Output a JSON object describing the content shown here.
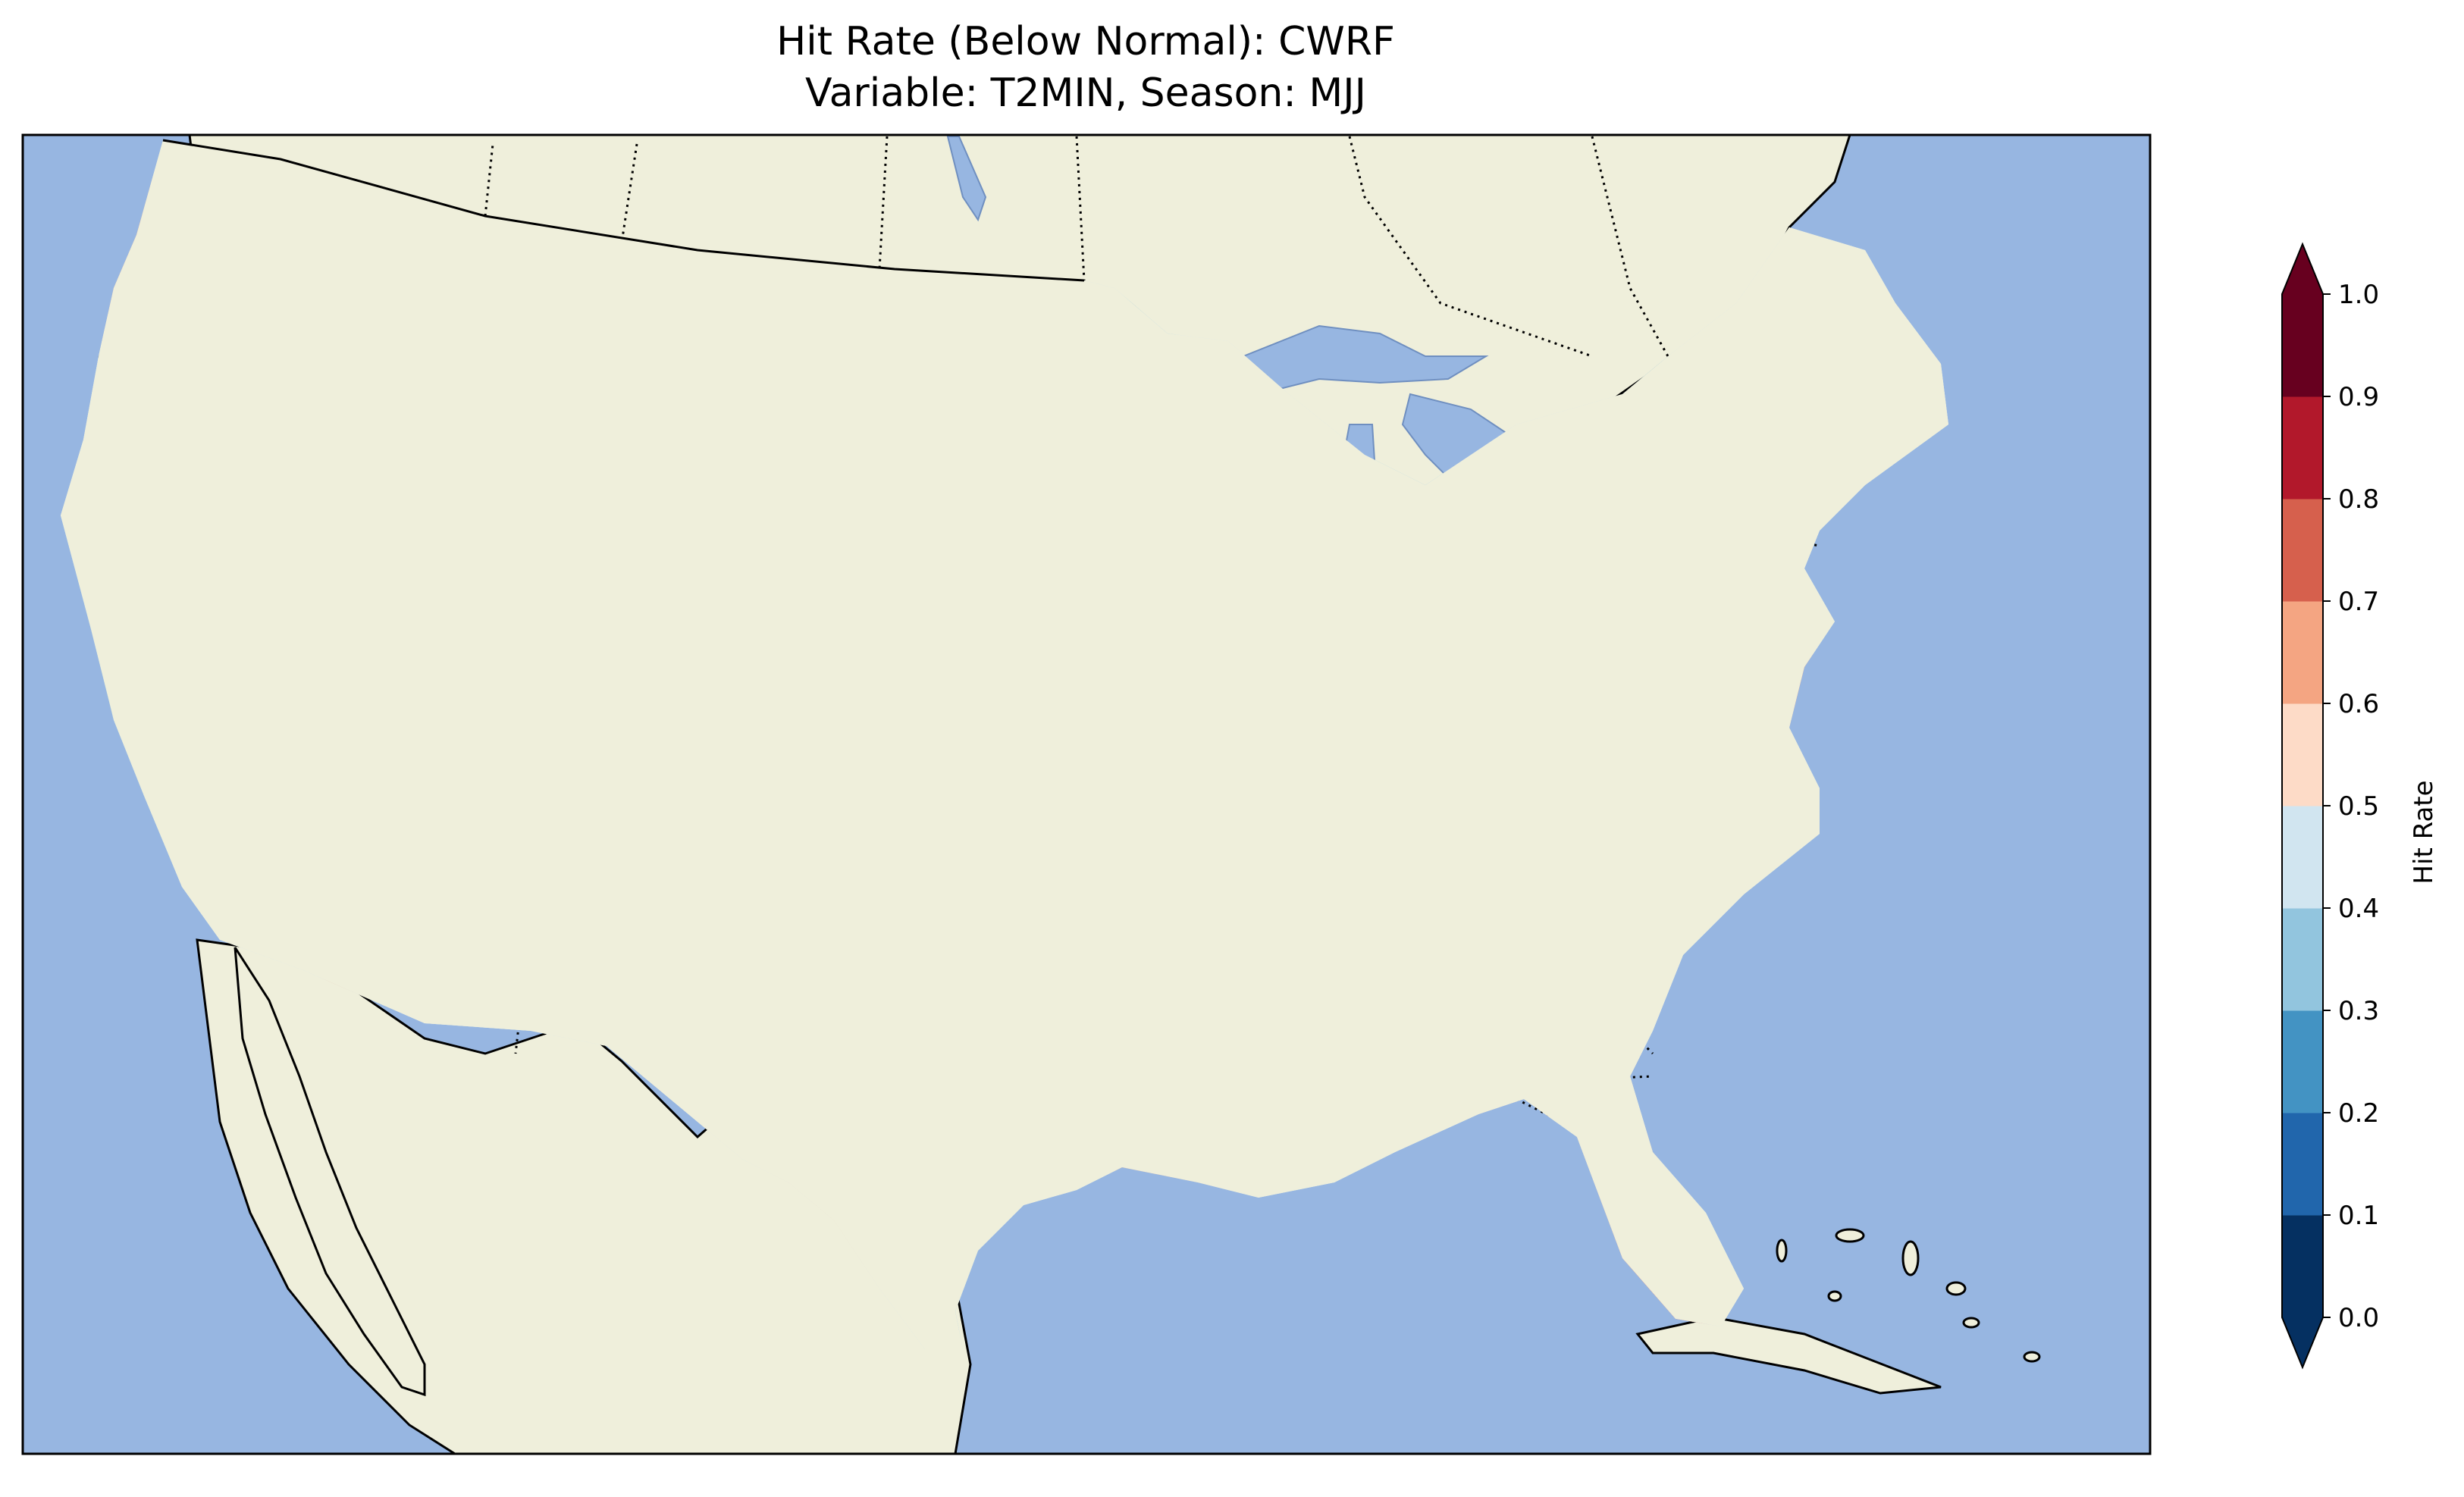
{
  "title": {
    "line1": "Hit Rate (Below Normal): CWRF",
    "line2": "Variable: T2MIN, Season: MJJ"
  },
  "colorbar": {
    "label": "Hit Rate",
    "ticks": [
      "0.0",
      "0.1",
      "0.2",
      "0.3",
      "0.4",
      "0.5",
      "0.6",
      "0.7",
      "0.8",
      "0.9",
      "1.0"
    ],
    "colors": [
      "#053061",
      "#2166ac",
      "#4393c3",
      "#92c5de",
      "#d1e5f0",
      "#fddbc7",
      "#f4a582",
      "#d6604d",
      "#b2182b",
      "#67001f"
    ],
    "extend": "both"
  },
  "map": {
    "ocean_color": "#97b6e1",
    "land_color": "#efefdb",
    "lakes_color": "#97b6e1"
  }
}
